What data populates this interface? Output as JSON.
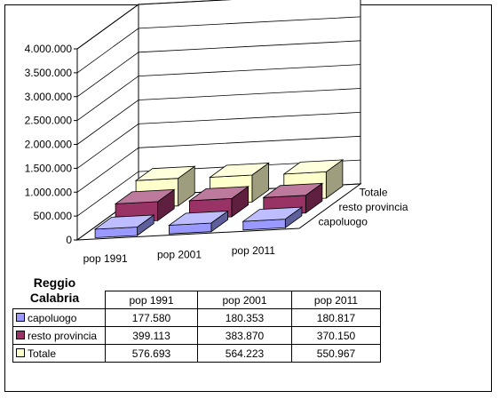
{
  "chart_data": {
    "type": "bar",
    "title": "",
    "categories": [
      "pop 1991",
      "pop 2001",
      "pop 2011"
    ],
    "series": [
      {
        "name": "capoluogo",
        "values": [
          177580,
          180353,
          180817
        ],
        "color": "#9999ff"
      },
      {
        "name": "resto provincia",
        "values": [
          399113,
          383870,
          370150
        ],
        "color": "#993366"
      },
      {
        "name": "Totale",
        "values": [
          576693,
          564223,
          550967
        ],
        "color": "#ffffcc"
      }
    ],
    "ylim": [
      0,
      4000000
    ],
    "yticks": [
      "0",
      "500.000",
      "1.000.000",
      "1.500.000",
      "2.000.000",
      "2.500.000",
      "3.000.000",
      "3.500.000",
      "4.000.000"
    ],
    "grid": true,
    "projection": "3d-column"
  },
  "table": {
    "title": "Reggio Calabria",
    "headers": [
      "pop 1991",
      "pop 2001",
      "pop 2011"
    ],
    "rows": [
      {
        "label": "capoluogo",
        "color": "#9999ff",
        "values": [
          "177.580",
          "180.353",
          "180.817"
        ]
      },
      {
        "label": "resto provincia",
        "color": "#993366",
        "values": [
          "399.113",
          "383.870",
          "370.150"
        ]
      },
      {
        "label": "Totale",
        "color": "#ffffcc",
        "values": [
          "576.693",
          "564.223",
          "550.967"
        ]
      }
    ]
  }
}
